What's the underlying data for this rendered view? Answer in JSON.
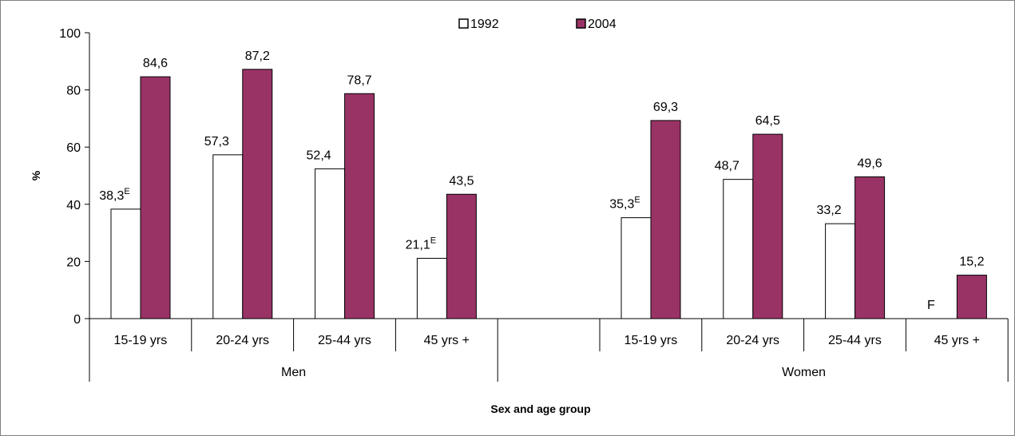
{
  "chart_data": {
    "type": "bar",
    "title": "",
    "ylabel": "%",
    "xlabel": "Sex and age group",
    "ylim": [
      0,
      100
    ],
    "yticks": [
      0,
      20,
      40,
      60,
      80,
      100
    ],
    "grid": false,
    "legend_position": "top-center",
    "groups": [
      "Men",
      "Women"
    ],
    "categories": [
      {
        "label": "15-19 yrs",
        "group": "Men"
      },
      {
        "label": "20-24 yrs",
        "group": "Men"
      },
      {
        "label": "25-44 yrs",
        "group": "Men"
      },
      {
        "label": "45 yrs +",
        "group": "Men"
      },
      {
        "label": "15-19 yrs",
        "group": "Women"
      },
      {
        "label": "20-24 yrs",
        "group": "Women"
      },
      {
        "label": "25-44 yrs",
        "group": "Women"
      },
      {
        "label": "45 yrs +",
        "group": "Women"
      }
    ],
    "series": [
      {
        "name": "1992",
        "color": "#ffffff",
        "values": [
          38.3,
          57.3,
          52.4,
          21.1,
          35.3,
          48.7,
          33.2,
          null
        ],
        "labels": [
          "38,3",
          "57,3",
          "52,4",
          "21,1",
          "35,3",
          "48,7",
          "33,2",
          "F"
        ],
        "superscripts": [
          "E",
          "",
          "",
          "E",
          "E",
          "",
          "",
          ""
        ]
      },
      {
        "name": "2004",
        "color": "#993366",
        "values": [
          84.6,
          87.2,
          78.7,
          43.5,
          69.3,
          64.5,
          49.6,
          15.2
        ],
        "labels": [
          "84,6",
          "87,2",
          "78,7",
          "43,5",
          "69,3",
          "64,5",
          "49,6",
          "15,2"
        ],
        "superscripts": [
          "",
          "",
          "",
          "",
          "",
          "",
          "",
          ""
        ]
      }
    ]
  }
}
